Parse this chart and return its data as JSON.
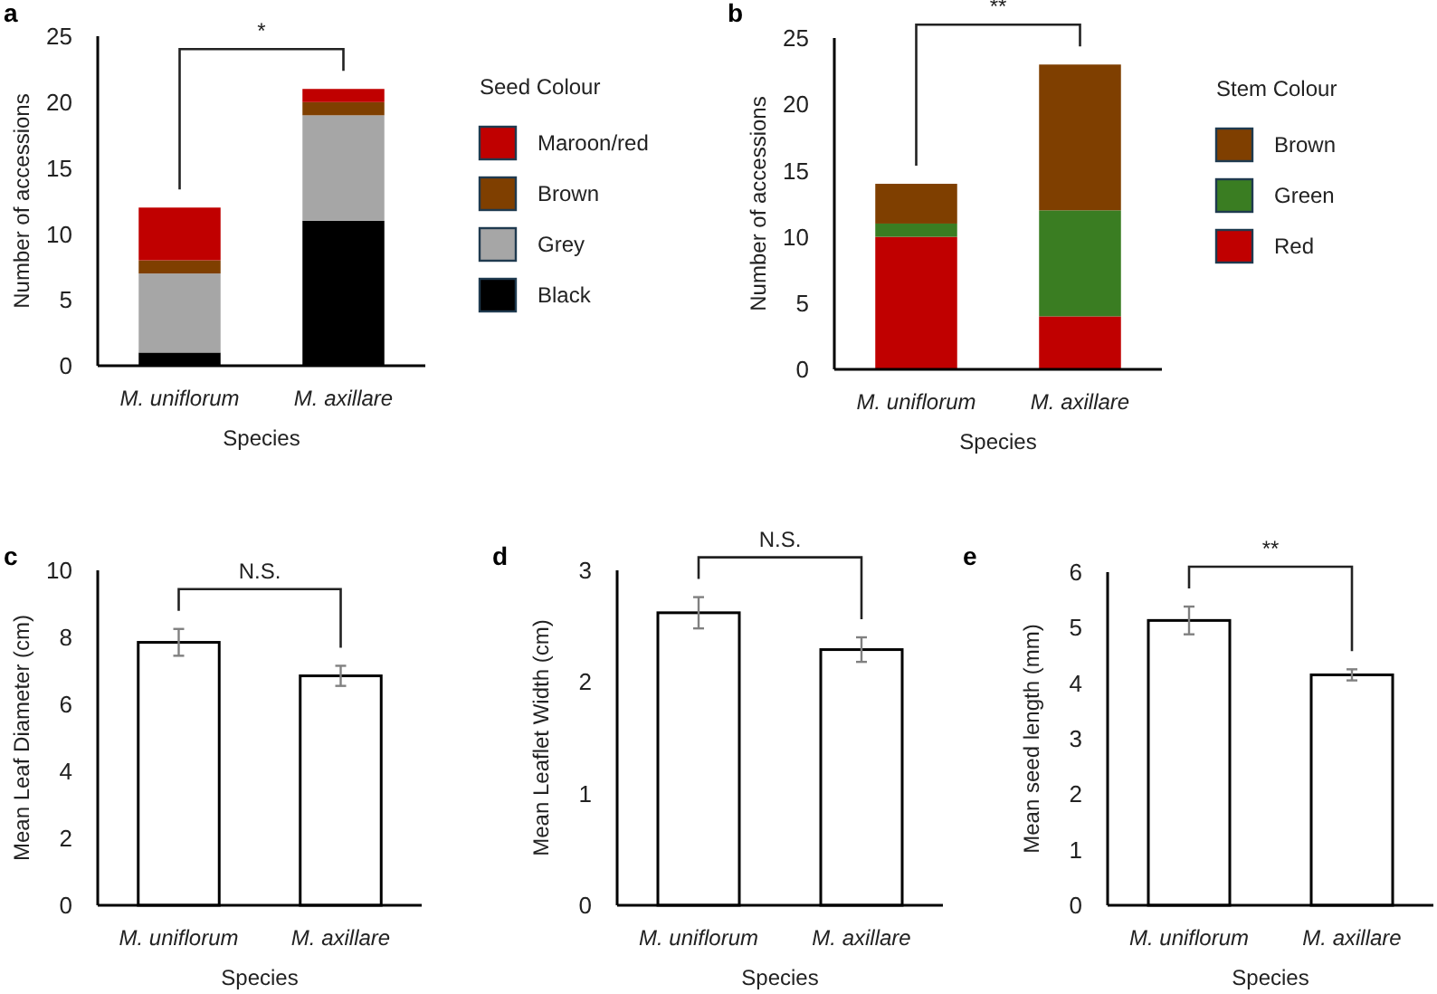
{
  "chart_data": [
    {
      "type": "bar",
      "title": "a",
      "stacked": true,
      "xlabel": "Species",
      "ylabel": "Number of accessions",
      "legend_title": "Seed Colour",
      "legend": "right",
      "categories": [
        "M. uniflorum",
        "M. axillare"
      ],
      "ylim": [
        0,
        25
      ],
      "yticks": [
        0,
        5,
        10,
        15,
        20,
        25
      ],
      "annotations": [
        "*"
      ],
      "series": [
        {
          "name": "Black",
          "color": "#000000",
          "values": [
            1,
            11
          ]
        },
        {
          "name": "Grey",
          "color": "#a6a6a6",
          "values": [
            6,
            8
          ]
        },
        {
          "name": "Brown",
          "color": "#7f3f00",
          "values": [
            1,
            1
          ]
        },
        {
          "name": "Maroon/red",
          "color": "#c00000",
          "values": [
            4,
            1
          ]
        }
      ]
    },
    {
      "type": "bar",
      "title": "b",
      "stacked": true,
      "xlabel": "Species",
      "ylabel": "Number of accessions",
      "legend_title": "Stem Colour",
      "legend": "right",
      "categories": [
        "M. uniflorum",
        "M. axillare"
      ],
      "ylim": [
        0,
        25
      ],
      "yticks": [
        0,
        5,
        10,
        15,
        20,
        25
      ],
      "annotations": [
        "**"
      ],
      "series": [
        {
          "name": "Red",
          "color": "#c00000",
          "values": [
            10,
            4
          ]
        },
        {
          "name": "Green",
          "color": "#3a7d22",
          "values": [
            1,
            8
          ]
        },
        {
          "name": "Brown",
          "color": "#7f3f00",
          "values": [
            3,
            11
          ]
        }
      ]
    },
    {
      "type": "bar",
      "title": "c",
      "xlabel": "Species",
      "ylabel": "Mean Leaf Diameter (cm)",
      "categories": [
        "M. uniflorum",
        "M. axillare"
      ],
      "ylim": [
        0,
        10
      ],
      "yticks": [
        0,
        2,
        4,
        6,
        8,
        10
      ],
      "annotations": [
        "N.S."
      ],
      "color": "#ffffff",
      "values": [
        7.85,
        6.85
      ],
      "errors": [
        0.4,
        0.3
      ]
    },
    {
      "type": "bar",
      "title": "d",
      "xlabel": "Species",
      "ylabel": "Mean Leaflet Width (cm)",
      "categories": [
        "M. uniflorum",
        "M. axillare"
      ],
      "ylim": [
        0,
        3
      ],
      "yticks": [
        0,
        1,
        2,
        3
      ],
      "annotations": [
        "N.S."
      ],
      "color": "#ffffff",
      "values": [
        2.62,
        2.29
      ],
      "errors": [
        0.14,
        0.11
      ]
    },
    {
      "type": "bar",
      "title": "e",
      "xlabel": "Species",
      "ylabel": "Mean seed length (mm)",
      "categories": [
        "M. uniflorum",
        "M. axillare"
      ],
      "ylim": [
        0,
        6
      ],
      "yticks": [
        0,
        1,
        2,
        3,
        4,
        5,
        6
      ],
      "annotations": [
        "**"
      ],
      "color": "#ffffff",
      "values": [
        5.13,
        4.15
      ],
      "errors": [
        0.25,
        0.1
      ]
    }
  ]
}
